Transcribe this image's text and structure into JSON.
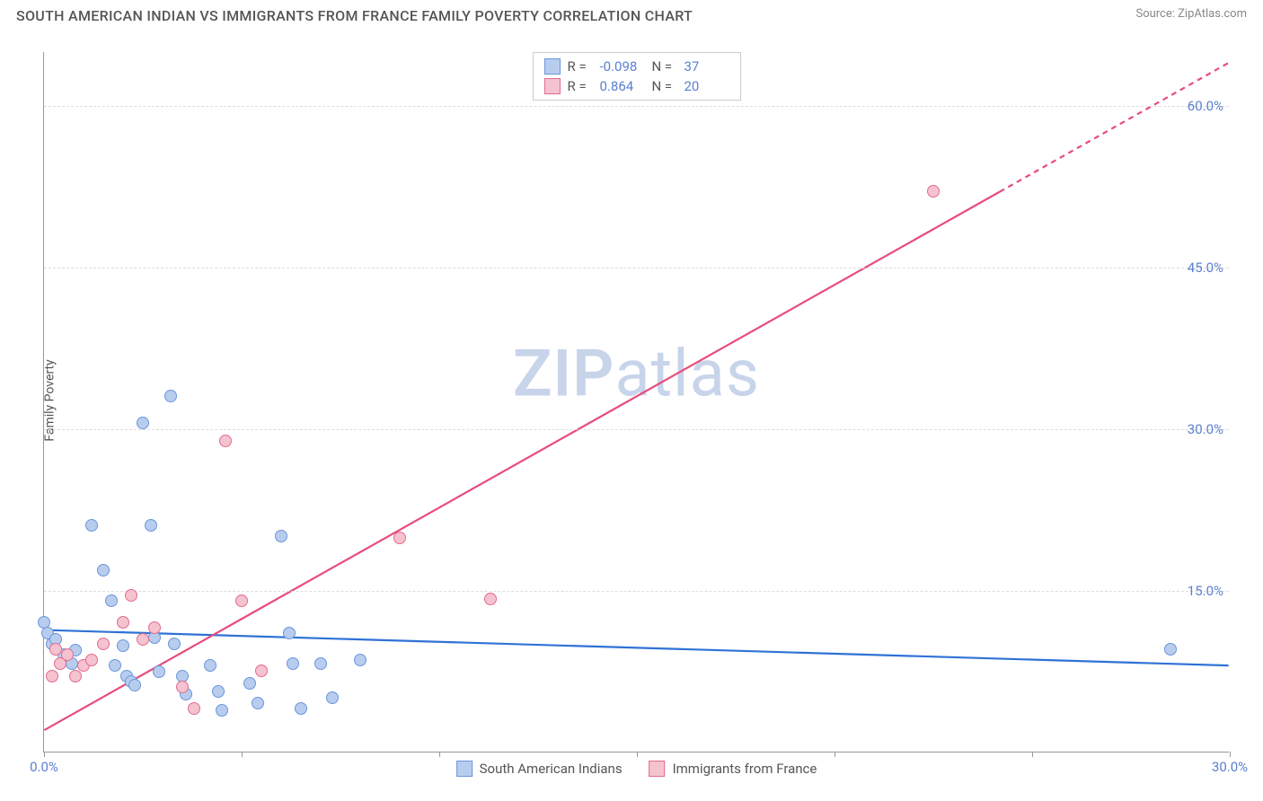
{
  "title": "SOUTH AMERICAN INDIAN VS IMMIGRANTS FROM FRANCE FAMILY POVERTY CORRELATION CHART",
  "source": "Source: ZipAtlas.com",
  "ylabel": "Family Poverty",
  "watermark_zip": "ZIP",
  "watermark_atlas": "atlas",
  "chart": {
    "type": "scatter",
    "xlim": [
      0,
      30
    ],
    "ylim": [
      0,
      65
    ],
    "background_color": "#ffffff",
    "grid_color": "#dddddd",
    "axis_color": "#999999",
    "tick_label_color": "#5b7fd1",
    "tick_label_fontsize": 15,
    "ylabel_fontsize": 14,
    "yticks": [
      15,
      30,
      45,
      60
    ],
    "ytick_labels": [
      "15.0%",
      "30.0%",
      "45.0%",
      "60.0%"
    ],
    "xticks": [
      0,
      5,
      10,
      15,
      20,
      25,
      30
    ],
    "xtick_labels": [
      "0.0%",
      "",
      "",
      "",
      "",
      "",
      "30.0%"
    ],
    "marker_radius": 7,
    "marker_stroke_width": 1.2,
    "trendline_width": 2.2
  },
  "series": [
    {
      "name": "South American Indians",
      "fill": "#b8cdee",
      "stroke": "#6a95dd",
      "line_color": "#2f72d6",
      "R": "-0.098",
      "N": "37",
      "trend": {
        "x1": 0,
        "y1": 11.3,
        "x2": 30,
        "y2": 8.0,
        "dash": false
      },
      "points": [
        [
          0.0,
          12.0
        ],
        [
          0.1,
          11.0
        ],
        [
          0.2,
          10.0
        ],
        [
          0.3,
          10.4
        ],
        [
          0.5,
          9.0
        ],
        [
          0.6,
          8.5
        ],
        [
          0.7,
          8.2
        ],
        [
          0.8,
          9.4
        ],
        [
          1.2,
          21.0
        ],
        [
          1.5,
          16.8
        ],
        [
          1.7,
          14.0
        ],
        [
          1.8,
          8.0
        ],
        [
          2.0,
          9.8
        ],
        [
          2.1,
          7.0
        ],
        [
          2.2,
          6.5
        ],
        [
          2.3,
          6.2
        ],
        [
          2.5,
          30.5
        ],
        [
          2.7,
          21.0
        ],
        [
          2.8,
          10.6
        ],
        [
          2.9,
          7.4
        ],
        [
          3.2,
          33.0
        ],
        [
          3.3,
          10.0
        ],
        [
          3.5,
          7.0
        ],
        [
          3.6,
          5.3
        ],
        [
          4.2,
          8.0
        ],
        [
          4.4,
          5.6
        ],
        [
          4.5,
          3.8
        ],
        [
          5.2,
          6.3
        ],
        [
          5.4,
          4.5
        ],
        [
          6.0,
          20.0
        ],
        [
          6.2,
          11.0
        ],
        [
          6.3,
          8.2
        ],
        [
          6.5,
          4.0
        ],
        [
          7.0,
          8.2
        ],
        [
          7.3,
          5.0
        ],
        [
          8.0,
          8.5
        ],
        [
          28.5,
          9.5
        ]
      ]
    },
    {
      "name": "Immigrants from France",
      "fill": "#f5c3cf",
      "stroke": "#e36b8e",
      "line_color": "#e84c7b",
      "R": "0.864",
      "N": "20",
      "trend": {
        "x1": 0,
        "y1": 2.0,
        "x2": 30,
        "y2": 64.0,
        "dash_from_x": 24.2
      },
      "points": [
        [
          0.2,
          7.0
        ],
        [
          0.3,
          9.5
        ],
        [
          0.4,
          8.2
        ],
        [
          0.6,
          9.0
        ],
        [
          0.8,
          7.0
        ],
        [
          1.0,
          8.0
        ],
        [
          1.2,
          8.5
        ],
        [
          1.5,
          10.0
        ],
        [
          2.0,
          12.0
        ],
        [
          2.2,
          14.5
        ],
        [
          2.5,
          10.4
        ],
        [
          2.8,
          11.5
        ],
        [
          3.5,
          6.0
        ],
        [
          3.8,
          4.0
        ],
        [
          4.6,
          28.8
        ],
        [
          5.0,
          14.0
        ],
        [
          5.5,
          7.5
        ],
        [
          9.0,
          19.8
        ],
        [
          11.3,
          14.2
        ],
        [
          22.5,
          52.0
        ]
      ]
    }
  ],
  "legend_top": {
    "R_label": "R =",
    "N_label": "N ="
  }
}
